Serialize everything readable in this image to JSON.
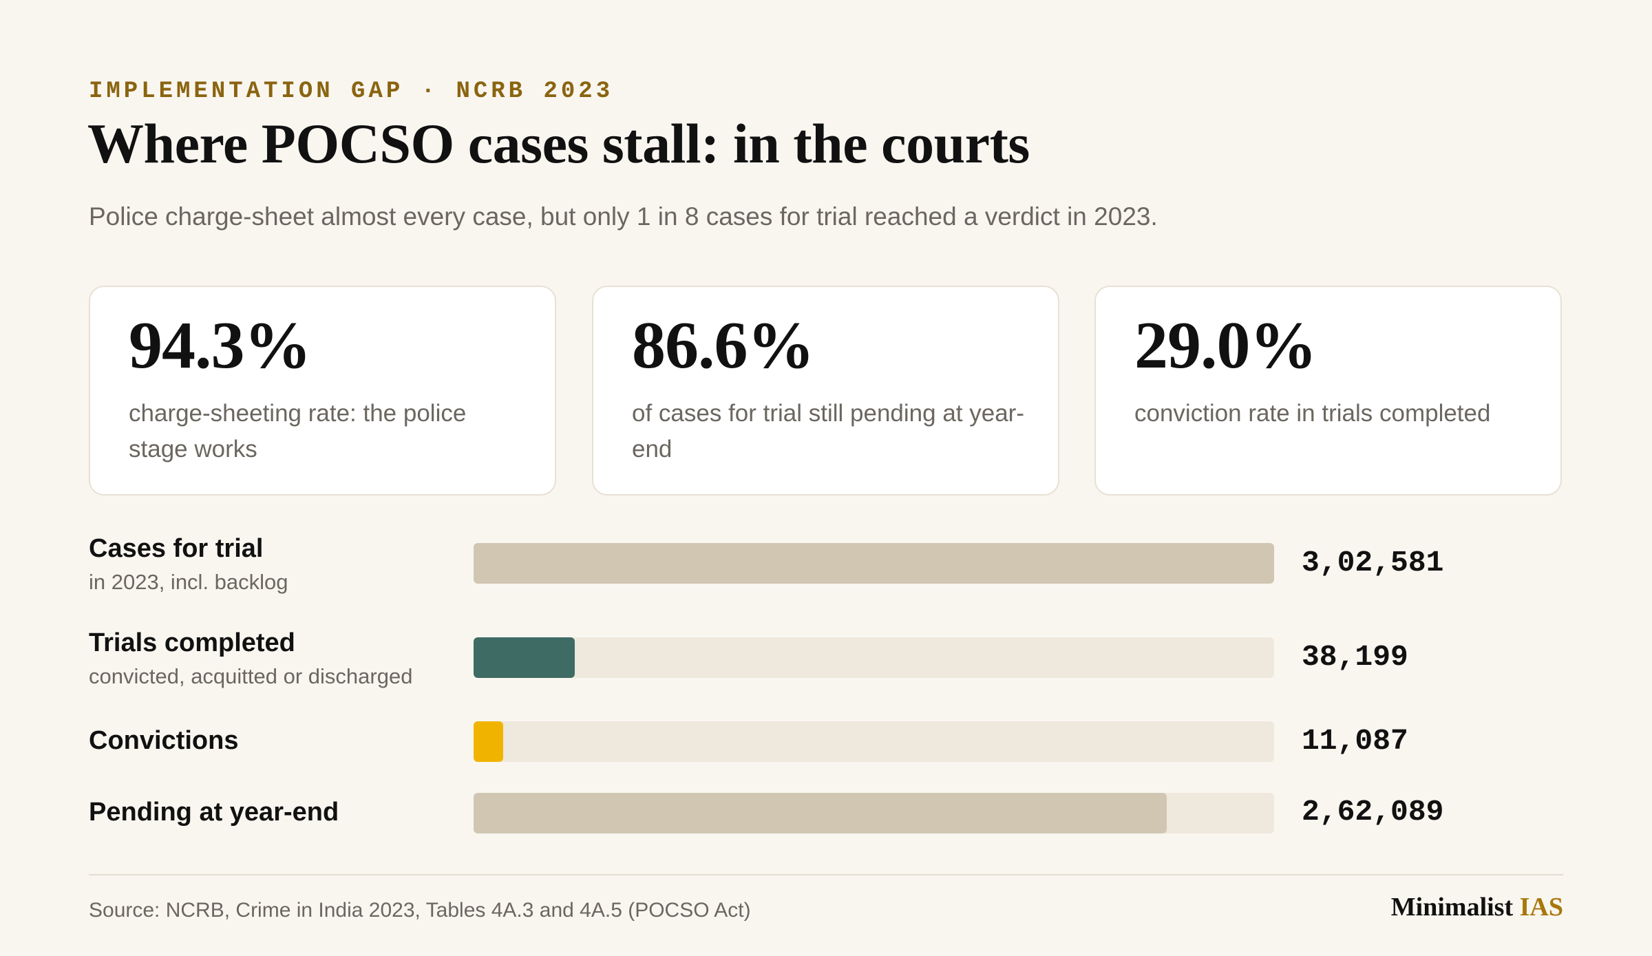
{
  "header": {
    "kicker": "IMPLEMENTATION GAP · NCRB 2023",
    "title": "Where POCSO cases stall: in the courts",
    "subtitle": "Police charge-sheet almost every case, but only 1 in 8 cases for trial reached a verdict in 2023."
  },
  "stats": [
    {
      "value": "94.3%",
      "text": "charge-sheeting rate: the police stage works"
    },
    {
      "value": "86.6%",
      "text": "of cases for trial still pending at year-end"
    },
    {
      "value": "29.0%",
      "text": "conviction rate in trials completed"
    }
  ],
  "chart_data": {
    "type": "bar",
    "orientation": "horizontal",
    "title": "",
    "xlabel": "",
    "ylabel": "",
    "xlim": [
      0,
      302581
    ],
    "grid": false,
    "categories": [
      "Cases for trial",
      "Trials completed",
      "Convictions",
      "Pending at year-end"
    ],
    "sublabels": [
      "in 2023, incl. backlog",
      "convicted, acquitted or discharged",
      "",
      ""
    ],
    "values": [
      302581,
      38199,
      11087,
      262089
    ],
    "value_labels": [
      "3,02,581",
      "38,199",
      "11,087",
      "2,62,089"
    ],
    "colors": [
      "#d0c6b2",
      "#3e6b63",
      "#f0b400",
      "#d0c6b2"
    ],
    "track_color": "#efe8dc"
  },
  "footer": {
    "source": "Source: NCRB, Crime in India 2023, Tables 4A.3 and 4A.5 (POCSO Act)",
    "brand_main": "Minimalist",
    "brand_accent": "IAS"
  }
}
